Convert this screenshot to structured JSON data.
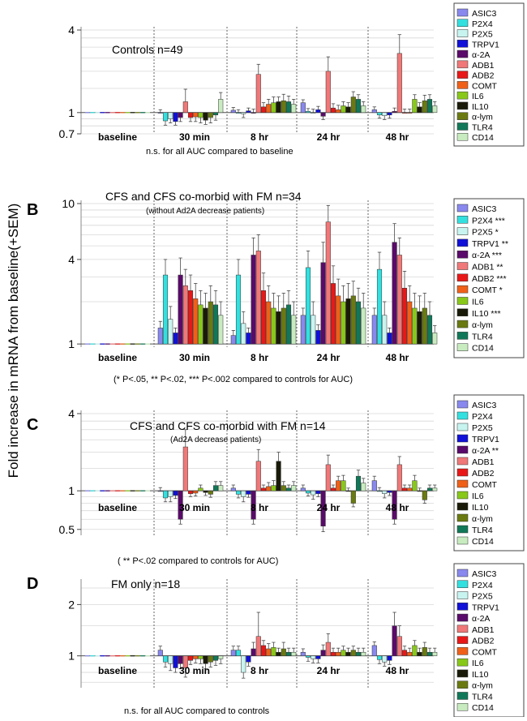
{
  "figure": {
    "ylabel": "Fold increase in mRNA from baseline(+SEM)",
    "categories": [
      "baseline",
      "30 min",
      "8 hr",
      "24 hr",
      "48 hr"
    ],
    "genes": [
      "ASIC3",
      "P2X4",
      "P2X5",
      "TRPV1",
      "α-2A",
      "ADB1",
      "ADB2",
      "COMT",
      "IL6",
      "IL10",
      "α-lym",
      "TLR4",
      "CD14"
    ],
    "colors": [
      "#8888ee",
      "#33e0e0",
      "#c8f4f0",
      "#1010d8",
      "#5a0a6a",
      "#f07878",
      "#e81818",
      "#f06018",
      "#88c818",
      "#1a1a08",
      "#6a7a10",
      "#107858",
      "#c8ecc0"
    ]
  },
  "chart_data": [
    {
      "type": "bar",
      "panel_letter": "",
      "title": "Controls n=49",
      "subtitle": "",
      "footnote": "n.s. for all AUC compared to baseline",
      "scale": "log",
      "ylim": [
        0.7,
        4
      ],
      "ticks": [
        {
          "v": 4,
          "label": "4"
        },
        {
          "v": 1,
          "label": "1"
        },
        {
          "v": 0.7,
          "label": "0.7"
        }
      ],
      "legend": [
        "ASIC3",
        "P2X4",
        "P2X5",
        "TRPV1",
        "α-2A",
        "ADB1",
        "ADB2",
        "COMT",
        "IL6",
        "IL10",
        "α-lym",
        "TLR4",
        "CD14"
      ],
      "categories": [
        "baseline",
        "30 min",
        "8 hr",
        "24 hr",
        "48 hr"
      ],
      "series": [
        {
          "values": [
            1,
            1.0,
            1.04,
            1.18,
            1.05
          ],
          "err": [
            0,
            0.05,
            0.05,
            0.06,
            0.05
          ]
        },
        {
          "values": [
            1,
            0.87,
            1.0,
            1.02,
            0.96
          ],
          "err": [
            0,
            0.06,
            0.05,
            0.05,
            0.05
          ]
        },
        {
          "values": [
            1,
            0.9,
            0.98,
            1.0,
            0.95
          ],
          "err": [
            0,
            0.06,
            0.06,
            0.06,
            0.06
          ]
        },
        {
          "values": [
            1,
            0.86,
            1.03,
            1.05,
            0.96
          ],
          "err": [
            0,
            0.05,
            0.05,
            0.06,
            0.05
          ]
        },
        {
          "values": [
            1,
            0.92,
            1.0,
            0.94,
            1.02
          ],
          "err": [
            0,
            0.06,
            0.06,
            0.05,
            0.06
          ]
        },
        {
          "values": [
            1,
            1.2,
            1.9,
            2.0,
            2.7
          ],
          "err": [
            0,
            0.28,
            0.35,
            0.55,
            1.0
          ]
        },
        {
          "values": [
            1,
            0.92,
            1.1,
            1.08,
            1.0
          ],
          "err": [
            0,
            0.06,
            0.08,
            0.08,
            0.06
          ]
        },
        {
          "values": [
            1,
            0.93,
            1.15,
            1.05,
            1.0
          ],
          "err": [
            0,
            0.07,
            0.1,
            0.08,
            0.06
          ]
        },
        {
          "values": [
            1,
            0.92,
            1.18,
            1.12,
            1.25
          ],
          "err": [
            0,
            0.08,
            0.12,
            0.08,
            0.1
          ]
        },
        {
          "values": [
            1,
            0.88,
            1.2,
            1.1,
            1.1
          ],
          "err": [
            0,
            0.06,
            0.1,
            0.08,
            0.08
          ]
        },
        {
          "values": [
            1,
            0.92,
            1.22,
            1.3,
            1.22
          ],
          "err": [
            0,
            0.08,
            0.14,
            0.12,
            0.12
          ]
        },
        {
          "values": [
            1,
            0.96,
            1.2,
            1.25,
            1.25
          ],
          "err": [
            0,
            0.08,
            0.12,
            0.1,
            0.1
          ]
        },
        {
          "values": [
            1,
            1.25,
            1.15,
            1.12,
            1.12
          ],
          "err": [
            0,
            0.15,
            0.1,
            0.08,
            0.08
          ]
        }
      ]
    },
    {
      "type": "bar",
      "panel_letter": "B",
      "title": "CFS and CFS co-morbid with FM n=34",
      "subtitle": "(without Ad2A decrease patients)",
      "footnote": "(* P<.05, ** P<.02, *** P<.002 compared to controls for AUC)",
      "scale": "log",
      "ylim": [
        0.95,
        10
      ],
      "ticks": [
        {
          "v": 10,
          "label": "10"
        },
        {
          "v": 4,
          "label": "4"
        },
        {
          "v": 1,
          "label": "1"
        }
      ],
      "legend": [
        "ASIC3",
        "P2X4 ***",
        "P2X5 *",
        "TRPV1 **",
        "α-2A ***",
        "ADB1 **",
        "ADB2 ***",
        "COMT *",
        "IL6",
        "IL10 ***",
        "α-lym",
        "TLR4",
        "CD14"
      ],
      "categories": [
        "baseline",
        "30 min",
        "8 hr",
        "24 hr",
        "48 hr"
      ],
      "series": [
        {
          "values": [
            1,
            1.3,
            1.15,
            1.6,
            1.6
          ],
          "err": [
            0,
            0.15,
            0.1,
            0.2,
            0.2
          ]
        },
        {
          "values": [
            1,
            3.1,
            3.1,
            3.5,
            3.4
          ],
          "err": [
            0,
            0.9,
            0.9,
            1.1,
            1.1
          ]
        },
        {
          "values": [
            1,
            1.5,
            1.4,
            1.6,
            1.6
          ],
          "err": [
            0,
            0.35,
            0.3,
            0.4,
            0.4
          ]
        },
        {
          "values": [
            1,
            1.2,
            1.2,
            1.25,
            1.2
          ],
          "err": [
            0,
            0.1,
            0.1,
            0.12,
            0.1
          ]
        },
        {
          "values": [
            1,
            3.1,
            4.3,
            3.8,
            5.3
          ],
          "err": [
            0,
            1.0,
            1.4,
            1.5,
            1.9
          ]
        },
        {
          "values": [
            1,
            2.6,
            4.6,
            7.4,
            4.3
          ],
          "err": [
            0,
            0.8,
            1.4,
            2.3,
            1.4
          ]
        },
        {
          "values": [
            1,
            2.4,
            2.4,
            2.7,
            2.5
          ],
          "err": [
            0,
            0.7,
            0.8,
            0.9,
            0.8
          ]
        },
        {
          "values": [
            1,
            2.1,
            2.0,
            2.2,
            2.0
          ],
          "err": [
            0,
            0.6,
            0.6,
            0.7,
            0.6
          ]
        },
        {
          "values": [
            1,
            1.9,
            1.8,
            2.0,
            1.8
          ],
          "err": [
            0,
            0.5,
            0.5,
            0.6,
            0.5
          ]
        },
        {
          "values": [
            1,
            1.8,
            1.7,
            2.1,
            1.7
          ],
          "err": [
            0,
            0.5,
            0.5,
            0.6,
            0.5
          ]
        },
        {
          "values": [
            1,
            2.0,
            1.8,
            2.2,
            1.8
          ],
          "err": [
            0,
            0.6,
            0.5,
            0.6,
            0.5
          ]
        },
        {
          "values": [
            1,
            1.9,
            1.9,
            2.0,
            1.6
          ],
          "err": [
            0,
            0.5,
            0.5,
            0.5,
            0.4
          ]
        },
        {
          "values": [
            1,
            1.6,
            1.6,
            1.8,
            1.2
          ],
          "err": [
            0,
            0.4,
            0.4,
            0.5,
            0.15
          ]
        }
      ]
    },
    {
      "type": "bar",
      "panel_letter": "C",
      "title": "CFS and CFS co-morbid with FM n=14",
      "subtitle": "(Ad2A decrease patients)",
      "footnote": "( ** P<.02 compared to controls for AUC)",
      "scale": "log",
      "ylim": [
        0.45,
        4
      ],
      "ticks": [
        {
          "v": 4,
          "label": "4"
        },
        {
          "v": 1,
          "label": "1"
        },
        {
          "v": 0.5,
          "label": "0.5"
        }
      ],
      "legend": [
        "ASIC3",
        "P2X4",
        "P2X5",
        "TRPV1",
        "α-2A **",
        "ADB1",
        "ADB2",
        "COMT",
        "IL6",
        "IL10",
        "α-lym",
        "TLR4",
        "CD14"
      ],
      "categories": [
        "baseline",
        "30 min",
        "8 hr",
        "24 hr",
        "48 hr"
      ],
      "series": [
        {
          "values": [
            1,
            1.0,
            1.05,
            1.05,
            1.2
          ],
          "err": [
            0,
            0.06,
            0.06,
            0.06,
            0.1
          ]
        },
        {
          "values": [
            1,
            0.88,
            0.94,
            0.96,
            1.0
          ],
          "err": [
            0,
            0.06,
            0.06,
            0.05,
            0.06
          ]
        },
        {
          "values": [
            1,
            0.9,
            0.9,
            0.93,
            0.95
          ],
          "err": [
            0,
            0.08,
            0.08,
            0.07,
            0.07
          ]
        },
        {
          "values": [
            1,
            0.92,
            0.94,
            0.95,
            0.97
          ],
          "err": [
            0,
            0.05,
            0.05,
            0.05,
            0.05
          ]
        },
        {
          "values": [
            1,
            0.6,
            0.6,
            0.53,
            0.6
          ],
          "err": [
            0,
            0.05,
            0.05,
            0.05,
            0.05
          ]
        },
        {
          "values": [
            1,
            2.2,
            1.7,
            1.6,
            1.6
          ],
          "err": [
            0,
            0.8,
            0.4,
            0.3,
            0.25
          ]
        },
        {
          "values": [
            1,
            0.95,
            1.05,
            1.05,
            1.05
          ],
          "err": [
            0,
            0.05,
            0.06,
            0.06,
            0.06
          ]
        },
        {
          "values": [
            1,
            0.96,
            1.08,
            1.2,
            1.05
          ],
          "err": [
            0,
            0.05,
            0.08,
            0.1,
            0.06
          ]
        },
        {
          "values": [
            1,
            1.05,
            1.1,
            1.2,
            1.2
          ],
          "err": [
            0,
            0.06,
            0.1,
            0.12,
            0.12
          ]
        },
        {
          "values": [
            1,
            0.97,
            1.7,
            1.0,
            1.0
          ],
          "err": [
            0,
            0.05,
            0.3,
            0.05,
            0.05
          ]
        },
        {
          "values": [
            1,
            0.94,
            1.1,
            0.8,
            0.85
          ],
          "err": [
            0,
            0.05,
            0.08,
            0.05,
            0.05
          ]
        },
        {
          "values": [
            1,
            1.1,
            1.05,
            1.3,
            1.05
          ],
          "err": [
            0,
            0.08,
            0.06,
            0.15,
            0.06
          ]
        },
        {
          "values": [
            1,
            1.1,
            1.1,
            1.15,
            1.05
          ],
          "err": [
            0,
            0.08,
            0.08,
            0.1,
            0.06
          ]
        }
      ]
    },
    {
      "type": "bar",
      "panel_letter": "D",
      "title": "FM only n=18",
      "subtitle": "",
      "footnote": "n.s. for all AUC compared to controls",
      "scale": "log",
      "ylim": [
        0.65,
        2.7
      ],
      "ticks": [
        {
          "v": 2,
          "label": "2"
        },
        {
          "v": 1,
          "label": "1"
        }
      ],
      "legend": [
        "ASIC3",
        "P2X4",
        "P2X5",
        "TRPV1",
        "α-2A",
        "ADB1",
        "ADB2",
        "COMT",
        "IL6",
        "IL10",
        "α-lym",
        "TLR4",
        "CD14"
      ],
      "categories": [
        "baseline",
        "30 min",
        "8 hr",
        "24 hr",
        "48 hr"
      ],
      "series": [
        {
          "values": [
            1,
            1.08,
            1.08,
            1.05,
            1.15
          ],
          "err": [
            0,
            0.06,
            0.06,
            0.05,
            0.06
          ]
        },
        {
          "values": [
            1,
            0.92,
            1.08,
            0.98,
            0.95
          ],
          "err": [
            0,
            0.06,
            0.06,
            0.05,
            0.05
          ]
        },
        {
          "values": [
            1,
            0.9,
            0.8,
            0.96,
            0.92
          ],
          "err": [
            0,
            0.08,
            0.06,
            0.05,
            0.05
          ]
        },
        {
          "values": [
            1,
            0.85,
            0.92,
            0.96,
            0.94
          ],
          "err": [
            0,
            0.05,
            0.05,
            0.05,
            0.05
          ]
        },
        {
          "values": [
            1,
            0.9,
            1.1,
            1.08,
            1.5
          ],
          "err": [
            0,
            0.06,
            0.1,
            0.08,
            0.3
          ]
        },
        {
          "values": [
            1,
            0.85,
            1.3,
            1.2,
            1.3
          ],
          "err": [
            0,
            0.1,
            0.5,
            0.15,
            0.2
          ]
        },
        {
          "values": [
            1,
            0.94,
            1.15,
            1.05,
            1.08
          ],
          "err": [
            0,
            0.05,
            0.08,
            0.06,
            0.06
          ]
        },
        {
          "values": [
            1,
            0.96,
            1.1,
            1.05,
            1.05
          ],
          "err": [
            0,
            0.05,
            0.08,
            0.06,
            0.06
          ]
        },
        {
          "values": [
            1,
            0.96,
            1.12,
            1.08,
            1.15
          ],
          "err": [
            0,
            0.06,
            0.08,
            0.06,
            0.08
          ]
        },
        {
          "values": [
            1,
            0.9,
            1.05,
            1.05,
            1.05
          ],
          "err": [
            0,
            0.06,
            0.06,
            0.06,
            0.06
          ]
        },
        {
          "values": [
            1,
            0.92,
            1.1,
            1.08,
            1.12
          ],
          "err": [
            0,
            0.06,
            0.1,
            0.06,
            0.08
          ]
        },
        {
          "values": [
            1,
            0.94,
            1.05,
            1.05,
            1.05
          ],
          "err": [
            0,
            0.06,
            0.06,
            0.06,
            0.06
          ]
        },
        {
          "values": [
            1,
            0.96,
            1.05,
            1.05,
            1.05
          ],
          "err": [
            0,
            0.06,
            0.06,
            0.06,
            0.06
          ]
        }
      ]
    }
  ]
}
